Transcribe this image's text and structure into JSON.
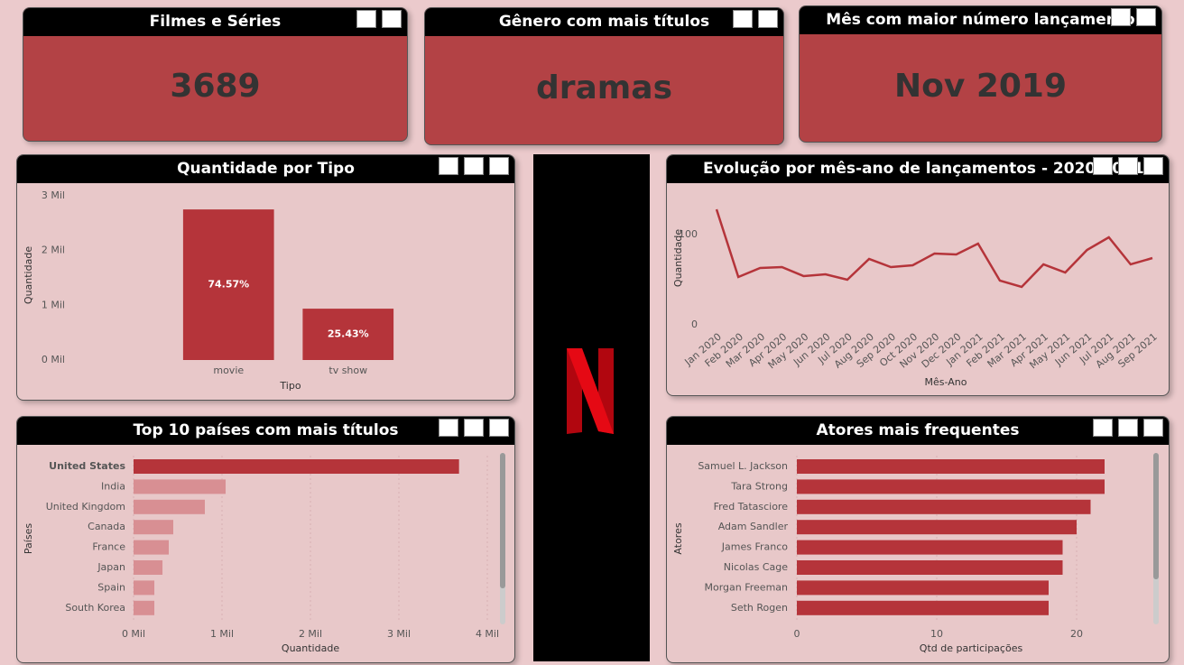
{
  "cards": [
    {
      "title": "Filmes e Séries",
      "value": 3689
    },
    {
      "title": "Gênero com mais títulos",
      "value": "dramas"
    },
    {
      "title": "Mês com maior número lançamento",
      "value": "Nov 2019"
    }
  ],
  "chart_data": [
    {
      "type": "bar",
      "title": "Quantidade por Tipo",
      "x_label": "Tipo",
      "y_label": "Quantidade",
      "categories": [
        "movie",
        "tv show"
      ],
      "values": [
        2751,
        938
      ],
      "percent_labels": [
        "74.57%",
        "25.43%"
      ],
      "color": "#b5343a",
      "ylim": [
        0,
        3000
      ],
      "yticks": [
        {
          "value": 0,
          "label": "0 Mil"
        },
        {
          "value": 1000,
          "label": "1 Mil"
        },
        {
          "value": 2000,
          "label": "2 Mil"
        },
        {
          "value": 3000,
          "label": "3 Mil"
        }
      ]
    },
    {
      "type": "line",
      "title": "Evolução por mês-ano de lançamentos - 2020/2021",
      "x_label": "Mês-Ano",
      "y_label": "Quantidade",
      "categories": [
        "Jan 2020",
        "Feb 2020",
        "Mar 2020",
        "Apr 2020",
        "May 2020",
        "Jun 2020",
        "Jul 2020",
        "Aug 2020",
        "Sep 2020",
        "Oct 2020",
        "Nov 2020",
        "Dec 2020",
        "Jan 2021",
        "Feb 2021",
        "Mar 2021",
        "Apr 2021",
        "May 2021",
        "Jun 2021",
        "Jul 2021",
        "Aug 2021",
        "Sep 2021"
      ],
      "values": [
        128,
        53,
        63,
        64,
        54,
        56,
        50,
        73,
        64,
        66,
        79,
        78,
        90,
        49,
        42,
        67,
        58,
        83,
        97,
        67,
        74
      ],
      "color": "#b5343a",
      "ylim": [
        0,
        145
      ],
      "yticks": [
        0,
        100
      ]
    },
    {
      "type": "bar",
      "horizontal": true,
      "title": "Top 10 países com mais títulos",
      "x_label": "Quantidade",
      "y_label": "Países",
      "categories": [
        "United States",
        "India",
        "United Kingdom",
        "Canada",
        "France",
        "Japan",
        "Spain",
        "South Korea"
      ],
      "values": [
        3680,
        1041,
        806,
        449,
        398,
        327,
        235,
        235
      ],
      "colors": [
        "#b5343a",
        "#d88f93",
        "#d88f93",
        "#d88f93",
        "#d88f93",
        "#d88f93",
        "#d88f93",
        "#d88f93"
      ],
      "xlim": [
        0,
        4000
      ],
      "xticks": [
        {
          "value": 0,
          "label": "0 Mil"
        },
        {
          "value": 1000,
          "label": "1 Mil"
        },
        {
          "value": 2000,
          "label": "2 Mil"
        },
        {
          "value": 3000,
          "label": "3 Mil"
        },
        {
          "value": 4000,
          "label": "4 Mil"
        }
      ],
      "grid": true
    },
    {
      "type": "bar",
      "horizontal": true,
      "title": "Atores mais frequentes",
      "x_label": "Qtd de participações",
      "y_label": "Atores",
      "categories": [
        "Samuel L. Jackson",
        "Tara Strong",
        "Fred Tatasciore",
        "Adam Sandler",
        "James Franco",
        "Nicolas Cage",
        "Morgan Freeman",
        "Seth Rogen"
      ],
      "values": [
        22,
        22,
        21,
        20,
        19,
        19,
        18,
        18
      ],
      "color": "#b5343a",
      "xlim": [
        0,
        25
      ],
      "xticks": [
        0,
        10,
        20
      ],
      "grid": true
    }
  ]
}
